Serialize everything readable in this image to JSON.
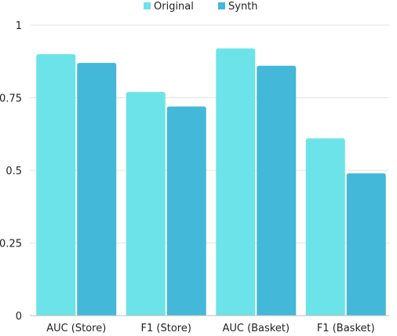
{
  "chart_data": {
    "type": "bar",
    "categories": [
      "AUC (Store)",
      "F1 (Store)",
      "AUC (Basket)",
      "F1 (Basket)"
    ],
    "series": [
      {
        "name": "Original",
        "values": [
          0.9,
          0.77,
          0.92,
          0.61
        ],
        "color": "#6ce3e8"
      },
      {
        "name": "Synth",
        "values": [
          0.87,
          0.72,
          0.86,
          0.49
        ],
        "color": "#44b8d8"
      }
    ],
    "yticks": [
      "0",
      "0.25",
      "0.5",
      "0.75",
      "1"
    ],
    "ylim": [
      0,
      1
    ],
    "grid": true,
    "legend": "top-center"
  }
}
